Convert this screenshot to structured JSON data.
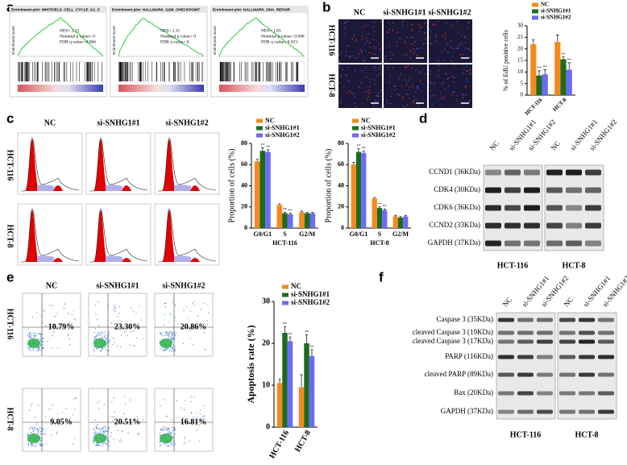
{
  "panel_labels": [
    "a",
    "b",
    "c",
    "d",
    "e",
    "f"
  ],
  "gsea": {
    "y_label": "Enrichment score",
    "plots": [
      {
        "title": "Enrichment plot: WHITFIELD_CELL_CYCLE_G1_S",
        "stats": [
          "NES= 2.31",
          "Nominal p value= 0",
          "FDR q value= 0.006"
        ]
      },
      {
        "title": "Enrichment plot: HALLMARK_G2M_CHECKPOINT",
        "stats": [
          "NES= 2.11",
          "Nominal p value= 0",
          "FDR q value= 0"
        ]
      },
      {
        "title": "Enrichment plot: HALLMARK_DNA_REPAIR",
        "stats": [
          "NES= 1.83",
          "Nominal p value= 0.006",
          "FDR q value= 0.023"
        ]
      }
    ]
  },
  "edu_images": {
    "columns": [
      "NC",
      "si-SNHG1#1",
      "si-SNHG1#2"
    ],
    "rows": [
      "HCT-116",
      "HCT-8"
    ]
  },
  "cell_cycle_histograms": {
    "columns": [
      "NC",
      "si-SNHG1#1",
      "si-SNHG1#2"
    ],
    "rows": [
      "HCT-116",
      "HCT-8"
    ]
  },
  "western_cell_cycle": {
    "proteins": [
      "CCND1 (36KDa)",
      "CDK4 (30KDa)",
      "CDK6 (36KDa)",
      "CCND2 (33KDa)",
      "GAPDH (37KDa)"
    ],
    "lanes": [
      "NC",
      "si-SNHG1#1",
      "si-SNHG1#2",
      "NC",
      "si-SNHG1#1",
      "si-SNHG1#2"
    ],
    "groups": [
      "HCT-116",
      "HCT-8"
    ]
  },
  "apoptosis_flow": {
    "columns": [
      "NC",
      "si-SNHG1#1",
      "si-SNHG1#2"
    ],
    "rows": [
      "HCT-116",
      "HCT-8"
    ],
    "percentages": [
      [
        "10.79%",
        "23.30%",
        "20.86%"
      ],
      [
        "9.05%",
        "20.51%",
        "16.81%"
      ]
    ]
  },
  "western_apoptosis": {
    "proteins": [
      "Caspase 3 (35KDa)",
      "cleaved Caspase 3 (19KDa)",
      "cleaved Caspase 3 (17KDa)",
      "PARP (116KDa)",
      "cleaved PARP (89KDa)",
      "Bax (20KDa)",
      "GAPDH (37KDa)"
    ],
    "lanes": [
      "NC",
      "si-SNHG1#1",
      "si-SNHG1#2",
      "NC",
      "si-SNHG1#1",
      "si-SNHG1#2"
    ],
    "groups": [
      "HCT-116",
      "HCT-8"
    ]
  },
  "chart_data": [
    {
      "type": "bar",
      "y_label": "% of EdU positive cells",
      "categories": [
        "HCT-116",
        "HCT-8"
      ],
      "series": [
        {
          "name": "NC",
          "color": "#f5891f",
          "values": [
            22,
            23
          ],
          "errors": [
            2,
            3
          ],
          "significance": [
            null,
            null
          ]
        },
        {
          "name": "si-SNHG1#1",
          "color": "#1e6b1e",
          "values": [
            8.5,
            15.5
          ],
          "errors": [
            2,
            1
          ],
          "significance": [
            "**",
            "**"
          ]
        },
        {
          "name": "si-SNHG1#2",
          "color": "#6b6bf5",
          "values": [
            9,
            11
          ],
          "errors": [
            2,
            3
          ],
          "significance": [
            "**",
            "**"
          ]
        }
      ],
      "ylim": [
        0,
        30
      ],
      "yticks": [
        0,
        5,
        10,
        15,
        20,
        25,
        30
      ],
      "legend": "top"
    },
    {
      "type": "bar",
      "y_label": "Proportion of cells (%)",
      "x_label": "HCT-116",
      "categories": [
        "G0/G1",
        "S",
        "G2/M"
      ],
      "series": [
        {
          "name": "NC",
          "color": "#f5891f",
          "values": [
            63,
            22,
            15
          ],
          "errors": [
            2,
            1,
            1
          ],
          "significance": [
            null,
            null,
            null
          ]
        },
        {
          "name": "si-SNHG1#1",
          "color": "#1e6b1e",
          "values": [
            73,
            14,
            14
          ],
          "errors": [
            3,
            1,
            1
          ],
          "significance": [
            "**",
            "**",
            null
          ]
        },
        {
          "name": "si-SNHG1#2",
          "color": "#6b6bf5",
          "values": [
            72,
            13,
            14
          ],
          "errors": [
            2,
            1,
            1
          ],
          "significance": [
            "**",
            "**",
            null
          ]
        }
      ],
      "ylim": [
        0,
        80
      ],
      "yticks": [
        0,
        20,
        40,
        60,
        80
      ],
      "legend": "top"
    },
    {
      "type": "bar",
      "y_label": "Proportion of cells (%)",
      "x_label": "HCT-8",
      "categories": [
        "G0/G1",
        "S",
        "G2/M"
      ],
      "series": [
        {
          "name": "NC",
          "color": "#f5891f",
          "values": [
            60,
            28,
            11
          ],
          "errors": [
            2,
            1,
            1
          ],
          "significance": [
            null,
            null,
            null
          ]
        },
        {
          "name": "si-SNHG1#1",
          "color": "#1e6b1e",
          "values": [
            72,
            19,
            10
          ],
          "errors": [
            3,
            1,
            1
          ],
          "significance": [
            "**",
            "**",
            null
          ]
        },
        {
          "name": "si-SNHG1#2",
          "color": "#6b6bf5",
          "values": [
            71,
            17,
            11
          ],
          "errors": [
            2,
            1,
            1
          ],
          "significance": [
            "**",
            "**",
            null
          ]
        }
      ],
      "ylim": [
        0,
        80
      ],
      "yticks": [
        0,
        20,
        40,
        60,
        80
      ],
      "legend": "top"
    },
    {
      "type": "bar",
      "y_label": "Apoptosis rate (%)",
      "categories": [
        "HCT-116",
        "HCT-8"
      ],
      "series": [
        {
          "name": "NC",
          "color": "#f5891f",
          "values": [
            10.5,
            9.5
          ],
          "errors": [
            1,
            3
          ],
          "significance": [
            null,
            null
          ]
        },
        {
          "name": "si-SNHG1#1",
          "color": "#1e6b1e",
          "values": [
            22.5,
            20
          ],
          "errors": [
            1.5,
            2
          ],
          "significance": [
            "**",
            "**"
          ]
        },
        {
          "name": "si-SNHG1#2",
          "color": "#6b6bf5",
          "values": [
            20.5,
            17
          ],
          "errors": [
            1,
            1.5
          ],
          "significance": [
            "**",
            "**"
          ]
        }
      ],
      "ylim": [
        0,
        30
      ],
      "yticks": [
        0,
        10,
        20,
        30
      ],
      "legend": "top"
    }
  ]
}
